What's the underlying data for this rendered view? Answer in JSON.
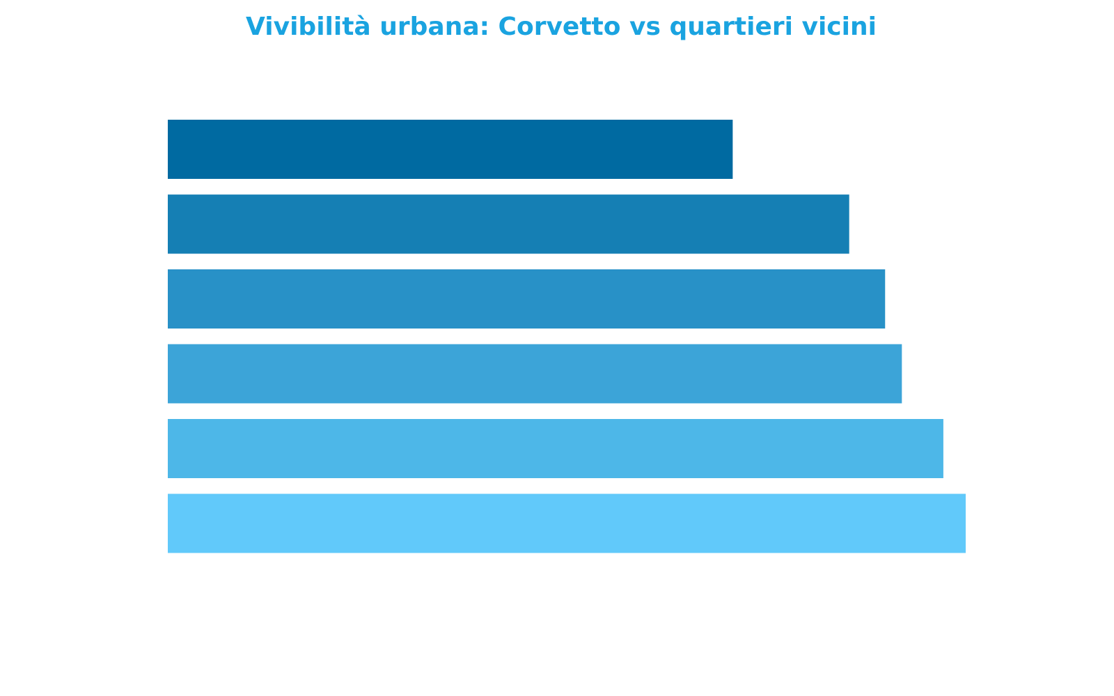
{
  "chart_data": {
    "type": "bar",
    "orientation": "horizontal",
    "title": "Vivibilità urbana: Corvetto vs quartieri vicini",
    "xlabel": "",
    "ylabel": "",
    "xlim": [
      0,
      1
    ],
    "grid": false,
    "axes_visible": false,
    "tick_labels_visible": false,
    "legend": "none",
    "values": [
      0.708,
      0.854,
      0.899,
      0.92,
      0.972,
      1.0
    ],
    "colors": [
      "#006aa1",
      "#157fb4",
      "#2891c7",
      "#3ca4d8",
      "#4db7e8",
      "#61c9fa"
    ],
    "title_color": "#1aa3e0"
  }
}
